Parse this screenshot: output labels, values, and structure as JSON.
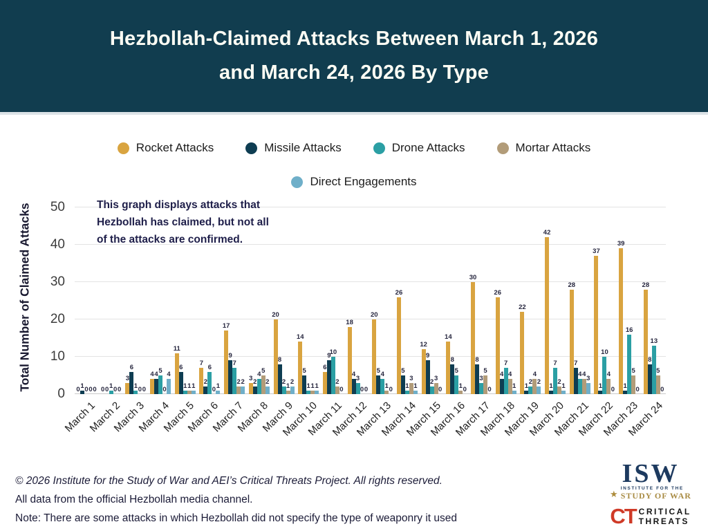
{
  "header": {
    "title_line1": "Hezbollah-Claimed Attacks Between March 1, 2026",
    "title_line2": "and March 24, 2026 By Type",
    "background_color": "#113D4F",
    "text_color": "#FDFDF4"
  },
  "chart_data": {
    "type": "bar",
    "title": "Hezbollah-Claimed Attacks Between March 1, 2026 and March 24, 2026 By Type",
    "xlabel": "",
    "ylabel": "Total Number of Claimed Attacks",
    "ylim": [
      0,
      50
    ],
    "yticks": [
      0,
      10,
      20,
      30,
      40,
      50
    ],
    "grid": true,
    "legend_position": "top",
    "annotation_lines": [
      "This graph displays attacks that",
      "Hezbollah has claimed, but not all",
      "of the attacks are confirmed."
    ],
    "categories": [
      "March 1",
      "March 2",
      "March 3",
      "March 4",
      "March 5",
      "March 6",
      "March 7",
      "March 8",
      "March 9",
      "March 10",
      "March 11",
      "March 12",
      "March 13",
      "March 14",
      "March 15",
      "March 16",
      "March 17",
      "March 18",
      "March 19",
      "March 20",
      "March 21",
      "March 22",
      "March 23",
      "March 24"
    ],
    "series": [
      {
        "name": "Rocket Attacks",
        "color": "#D9A440",
        "values": [
          0,
          0,
          3,
          4,
          11,
          7,
          17,
          3,
          20,
          14,
          6,
          18,
          20,
          26,
          12,
          14,
          30,
          26,
          22,
          42,
          28,
          37,
          39,
          28
        ]
      },
      {
        "name": "Missile Attacks",
        "color": "#0E3D52",
        "values": [
          1,
          0,
          6,
          4,
          6,
          2,
          9,
          2,
          8,
          5,
          9,
          4,
          5,
          5,
          9,
          8,
          8,
          4,
          1,
          1,
          7,
          1,
          1,
          8
        ]
      },
      {
        "name": "Drone Attacks",
        "color": "#2B9FA4",
        "values": [
          0,
          1,
          1,
          5,
          1,
          6,
          7,
          4,
          2,
          1,
          10,
          3,
          4,
          1,
          2,
          5,
          3,
          7,
          2,
          7,
          4,
          10,
          16,
          13
        ]
      },
      {
        "name": "Mortar Attacks",
        "color": "#B29C79",
        "values": [
          0,
          0,
          0,
          0,
          1,
          0,
          2,
          5,
          1,
          1,
          2,
          0,
          1,
          3,
          3,
          1,
          5,
          4,
          4,
          2,
          4,
          4,
          5,
          5
        ]
      },
      {
        "name": "Direct Engagements",
        "color": "#6FAFC9",
        "values": [
          0,
          0,
          0,
          4,
          1,
          1,
          2,
          2,
          2,
          1,
          0,
          0,
          0,
          1,
          0,
          0,
          0,
          1,
          2,
          1,
          3,
          0,
          0,
          0
        ]
      }
    ]
  },
  "footer": {
    "line1": "© 2026 Institute for the Study of War and AEI’s Critical Threats Project. All rights reserved.",
    "line2": "All data from the official Hezbollah media channel.",
    "line3": "Note: There are some attacks in which Hezbollah did not specify the type of weaponry it used"
  },
  "logos": {
    "isw": {
      "acronym": "ISW",
      "line1": "INSTITUTE FOR THE",
      "line2": "STUDY OF WAR",
      "star": "★"
    },
    "ct": {
      "acronym": "CT",
      "line1": "CRITICAL",
      "line2": "THREATS"
    }
  }
}
